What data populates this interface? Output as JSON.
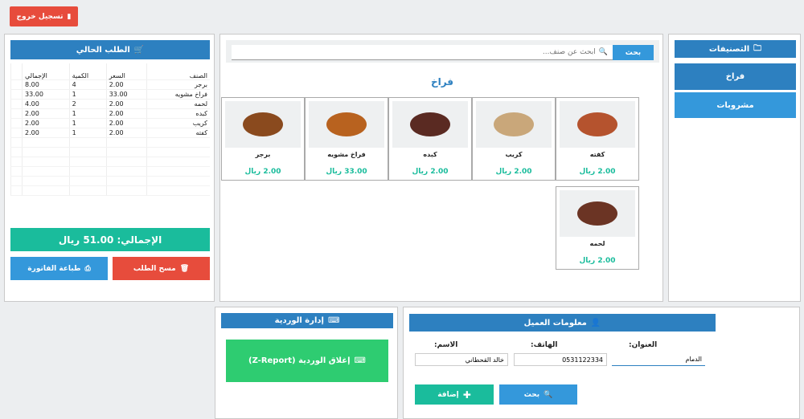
{
  "header": {
    "logout_label": "تسجيل خروج",
    "logout_icon": "exit-icon"
  },
  "order": {
    "title": "الطلب الحالي",
    "columns": [
      "الصنف",
      "السعر",
      "الكمية",
      "الإجمالي"
    ],
    "rows": [
      [
        "برجر",
        "2.00",
        "4",
        "8.00"
      ],
      [
        "فراخ مشويه",
        "33.00",
        "1",
        "33.00"
      ],
      [
        "لحمه",
        "2.00",
        "2",
        "4.00"
      ],
      [
        "كبده",
        "2.00",
        "1",
        "2.00"
      ],
      [
        "كريب",
        "2.00",
        "1",
        "2.00"
      ],
      [
        "كفته",
        "2.00",
        "1",
        "2.00"
      ]
    ],
    "total": "الإجمالي: 51.00 ريال",
    "clear_label": "مسح الطلب",
    "print_label": "طباعة الفاتورة"
  },
  "search": {
    "placeholder": "ابحث عن صنف...",
    "button": "بحث"
  },
  "products": {
    "category_title": "فراخ",
    "items": [
      {
        "name": "كفته",
        "price": "2.00 ريال",
        "color": "#b5532e"
      },
      {
        "name": "كريب",
        "price": "2.00 ريال",
        "color": "#c9a77a"
      },
      {
        "name": "كبده",
        "price": "2.00 ريال",
        "color": "#5a2a22"
      },
      {
        "name": "فراخ مشويه",
        "price": "33.00 ريال",
        "color": "#b8621f"
      },
      {
        "name": "برجر",
        "price": "2.00 ريال",
        "color": "#8a4a1e"
      },
      {
        "name": "لحمه",
        "price": "2.00 ريال",
        "color": "#6b3424"
      }
    ]
  },
  "categories": {
    "title": "التصنيفات",
    "items": [
      "فراخ",
      "مشروبات"
    ]
  },
  "shift": {
    "title": "إدارة الوردية",
    "close_label": "إغلاق الوردية (Z-Report)"
  },
  "customer": {
    "title": "معلومات العميل",
    "address_label": "العنوان:",
    "phone_label": "الهاتف:",
    "name_label": "الاسم:",
    "address_value": "الدمام",
    "phone_value": "0531122334",
    "name_value": "خالد القحطاني",
    "search_label": "بحث",
    "add_label": "إضافة"
  },
  "colors": {
    "primary": "#2d80c0",
    "blue": "#3498db",
    "red": "#e74c3c",
    "teal": "#1abc9c",
    "green": "#2ecc71"
  }
}
